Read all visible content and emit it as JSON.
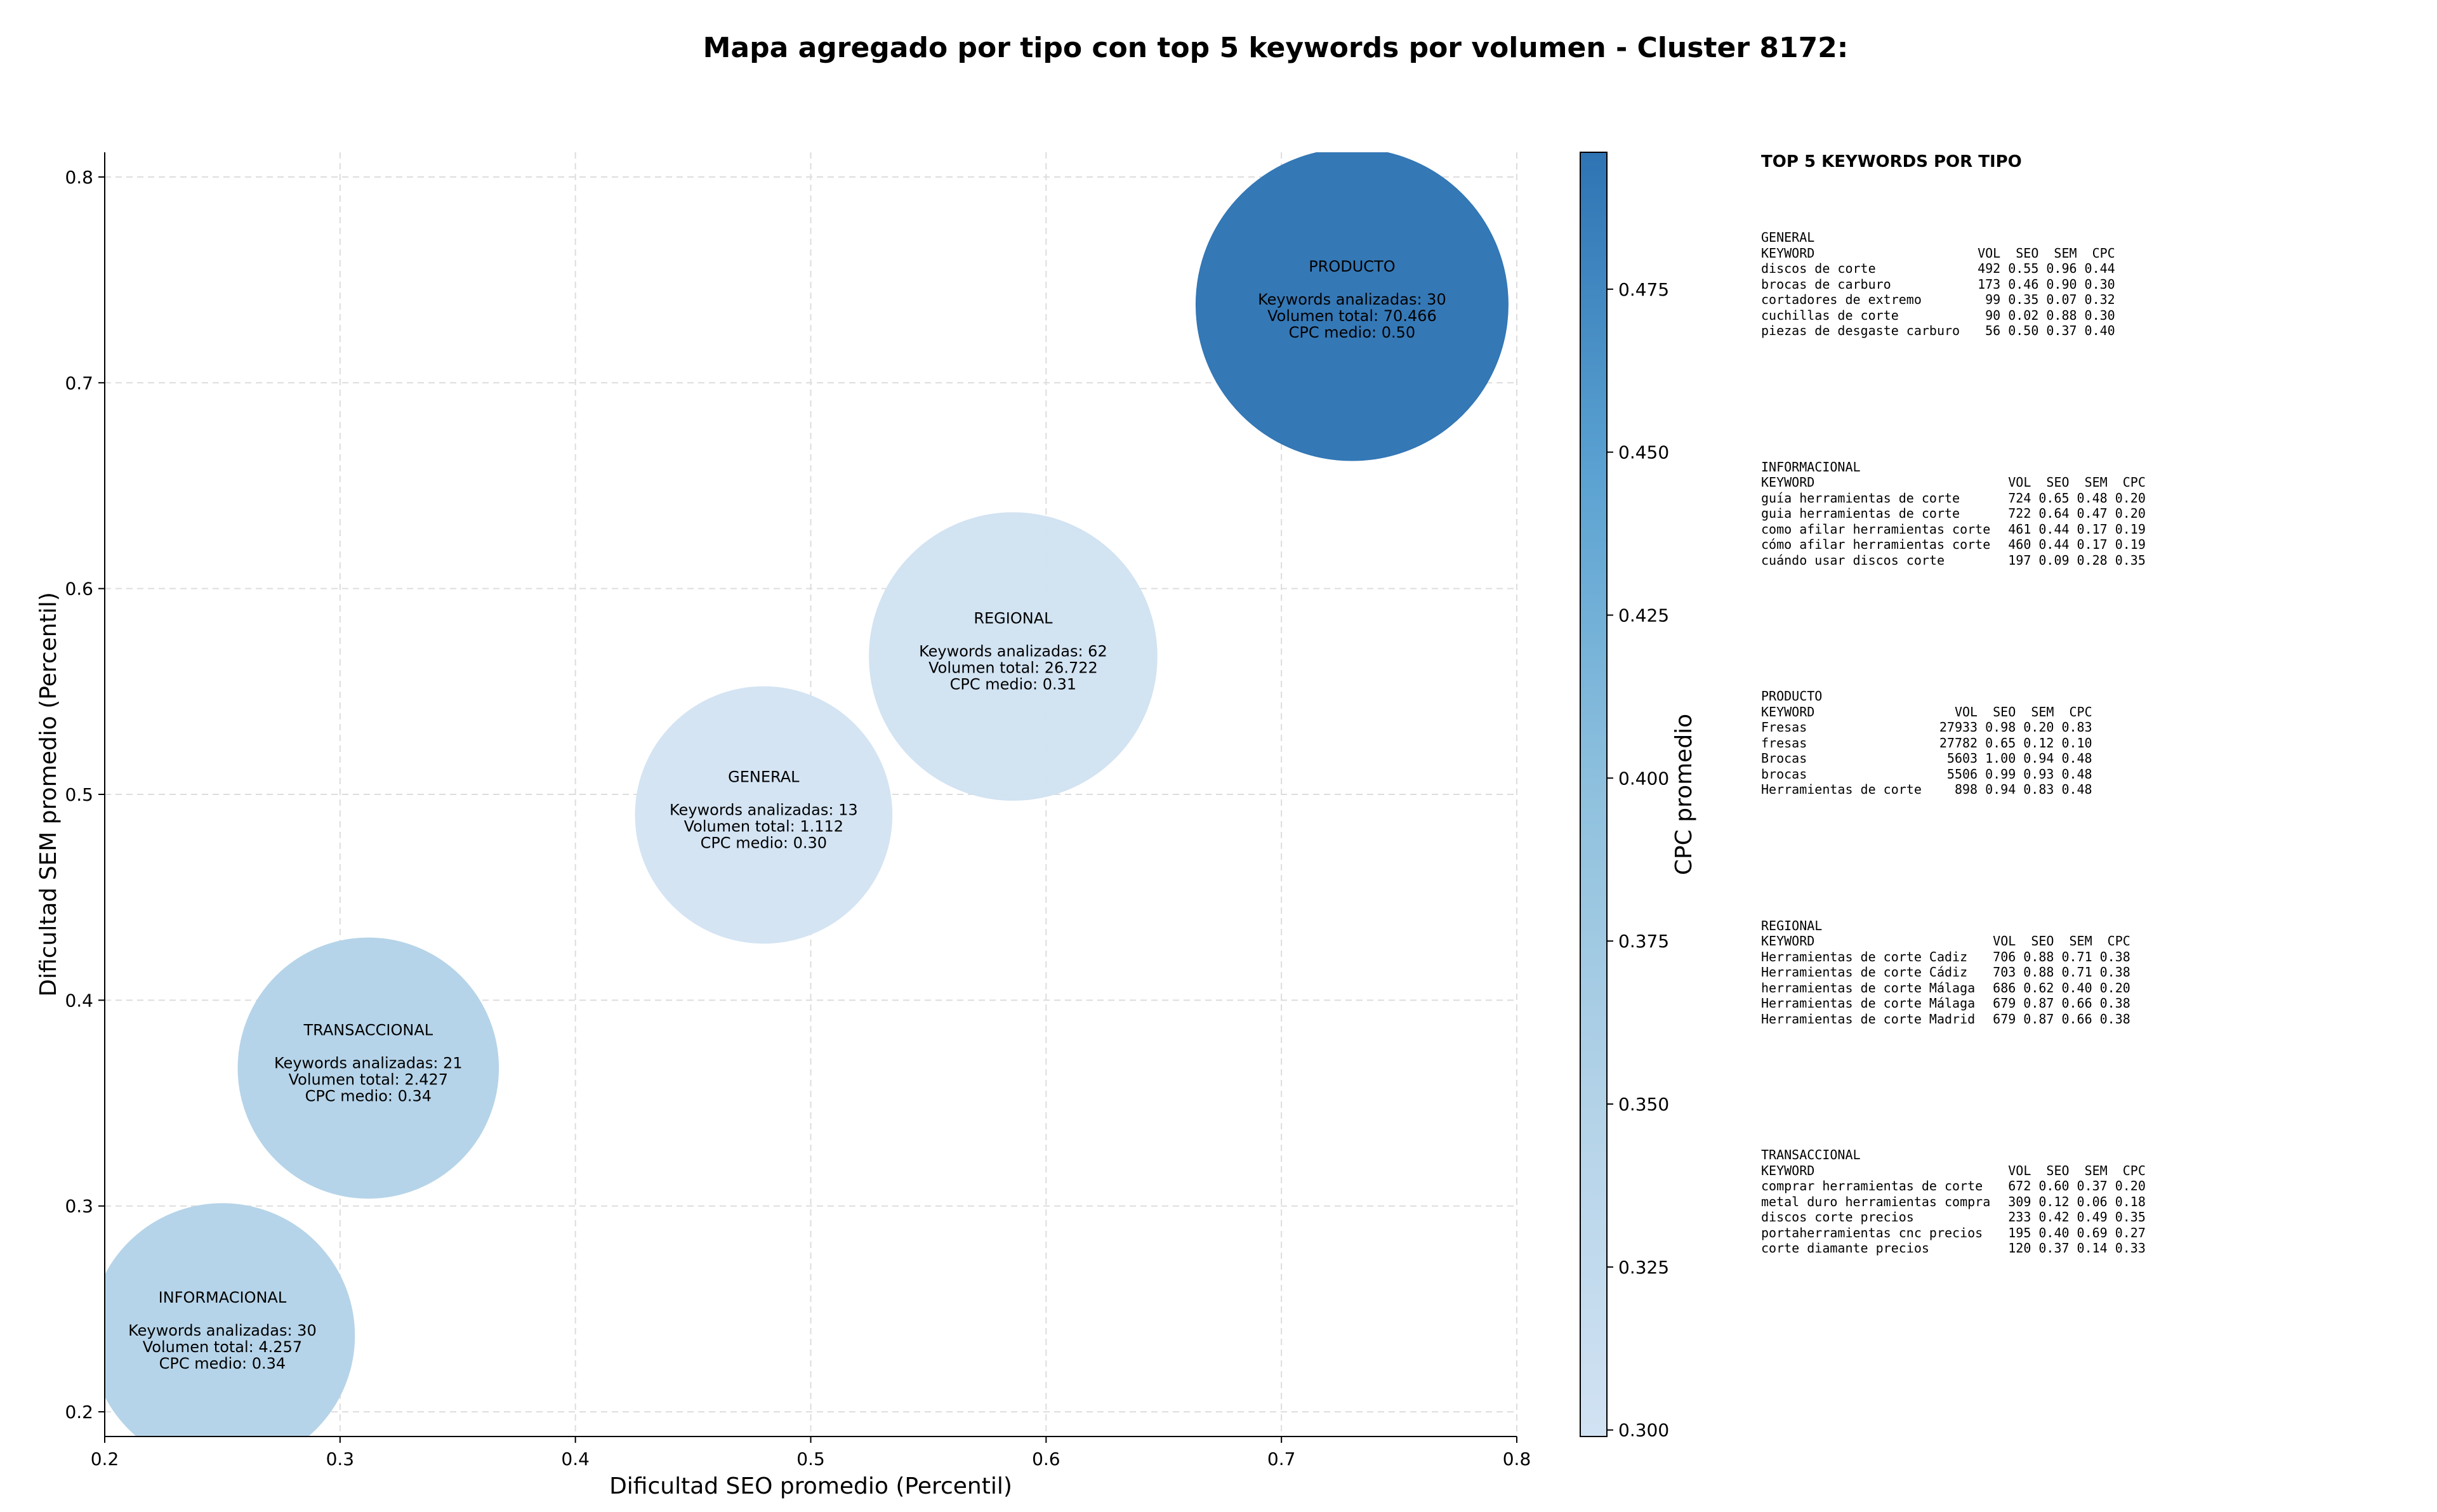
{
  "title": "Mapa agregado por tipo con top 5 keywords por volumen - Cluster 8172:",
  "chart_data": {
    "type": "scatter",
    "subtype": "bubble",
    "xlabel": "Dificultad SEO promedio (Percentil)",
    "ylabel": "Dificultad SEM promedio (Percentil)",
    "xlim": [
      0.2,
      0.8
    ],
    "ylim": [
      0.188,
      0.812
    ],
    "xticks": [
      "0.2",
      "0.3",
      "0.4",
      "0.5",
      "0.6",
      "0.7",
      "0.8"
    ],
    "yticks": [
      "0.2",
      "0.3",
      "0.4",
      "0.5",
      "0.6",
      "0.7",
      "0.8"
    ],
    "grid": true,
    "colorbar": {
      "label": "CPC promedio",
      "min": 0.299,
      "max": 0.496,
      "ticks": [
        "0.300",
        "0.325",
        "0.350",
        "0.375",
        "0.400",
        "0.425",
        "0.450",
        "0.475"
      ],
      "colormap": [
        "#c6dbef",
        "#9ecae1",
        "#6baed6",
        "#4292c6",
        "#2171b5"
      ]
    },
    "points": [
      {
        "name": "INFORMACIONAL",
        "x": 0.25,
        "y": 0.237,
        "keywords": "Keywords analizadas: 30",
        "volume": "Volumen total: 4.257",
        "cpc_label": "CPC medio: 0.34",
        "cpc": 0.34,
        "color": "#b4d3e8"
      },
      {
        "name": "TRANSACCIONAL",
        "x": 0.312,
        "y": 0.367,
        "keywords": "Keywords analizadas: 21",
        "volume": "Volumen total: 2.427",
        "cpc_label": "CPC medio: 0.34",
        "cpc": 0.34,
        "color": "#b4d3e8"
      },
      {
        "name": "GENERAL",
        "x": 0.48,
        "y": 0.49,
        "keywords": "Keywords analizadas: 13",
        "volume": "Volumen total: 1.112",
        "cpc_label": "CPC medio: 0.30",
        "cpc": 0.3,
        "color": "#d3e3f3"
      },
      {
        "name": "REGIONAL",
        "x": 0.586,
        "y": 0.567,
        "keywords": "Keywords analizadas: 62",
        "volume": "Volumen total: 26.722",
        "cpc_label": "CPC medio: 0.31",
        "cpc": 0.31,
        "color": "#d1e2f2"
      },
      {
        "name": "PRODUCTO",
        "x": 0.73,
        "y": 0.738,
        "keywords": "Keywords analizadas: 30",
        "volume": "Volumen total: 70.466",
        "cpc_label": "CPC medio: 0.50",
        "cpc": 0.5,
        "color": "#2e74b4"
      }
    ]
  },
  "panel": {
    "title": "TOP 5 KEYWORDS POR TIPO",
    "columns": [
      "KEYWORD",
      "VOL",
      "SEO",
      "SEM",
      "CPC"
    ],
    "blocks": [
      {
        "name": "GENERAL",
        "rows": [
          [
            "discos de corte",
            "492",
            "0.55",
            "0.96",
            "0.44"
          ],
          [
            "brocas de carburo",
            "173",
            "0.46",
            "0.90",
            "0.30"
          ],
          [
            "cortadores de extremo",
            "99",
            "0.35",
            "0.07",
            "0.32"
          ],
          [
            "cuchillas de corte",
            "90",
            "0.02",
            "0.88",
            "0.30"
          ],
          [
            "piezas de desgaste carburo",
            "56",
            "0.50",
            "0.37",
            "0.40"
          ]
        ]
      },
      {
        "name": "INFORMACIONAL",
        "rows": [
          [
            "guía herramientas de corte",
            "724",
            "0.65",
            "0.48",
            "0.20"
          ],
          [
            "guia herramientas de corte",
            "722",
            "0.64",
            "0.47",
            "0.20"
          ],
          [
            "como afilar herramientas corte",
            "461",
            "0.44",
            "0.17",
            "0.19"
          ],
          [
            "cómo afilar herramientas corte",
            "460",
            "0.44",
            "0.17",
            "0.19"
          ],
          [
            "cuándo usar discos corte",
            "197",
            "0.09",
            "0.28",
            "0.35"
          ]
        ]
      },
      {
        "name": "PRODUCTO",
        "rows": [
          [
            "Fresas",
            "27933",
            "0.98",
            "0.20",
            "0.83"
          ],
          [
            "fresas",
            "27782",
            "0.65",
            "0.12",
            "0.10"
          ],
          [
            "Brocas",
            "5603",
            "1.00",
            "0.94",
            "0.48"
          ],
          [
            "brocas",
            "5506",
            "0.99",
            "0.93",
            "0.48"
          ],
          [
            "Herramientas de corte",
            "898",
            "0.94",
            "0.83",
            "0.48"
          ]
        ]
      },
      {
        "name": "REGIONAL",
        "rows": [
          [
            "Herramientas de corte Cadiz",
            "706",
            "0.88",
            "0.71",
            "0.38"
          ],
          [
            "Herramientas de corte Cádiz",
            "703",
            "0.88",
            "0.71",
            "0.38"
          ],
          [
            "herramientas de corte Málaga",
            "686",
            "0.62",
            "0.40",
            "0.20"
          ],
          [
            "Herramientas de corte Málaga",
            "679",
            "0.87",
            "0.66",
            "0.38"
          ],
          [
            "Herramientas de corte Madrid",
            "679",
            "0.87",
            "0.66",
            "0.38"
          ]
        ]
      },
      {
        "name": "TRANSACCIONAL",
        "rows": [
          [
            "comprar herramientas de corte",
            "672",
            "0.60",
            "0.37",
            "0.20"
          ],
          [
            "metal duro herramientas compra",
            "309",
            "0.12",
            "0.06",
            "0.18"
          ],
          [
            "discos corte precios",
            "233",
            "0.42",
            "0.49",
            "0.35"
          ],
          [
            "portaherramientas cnc precios",
            "195",
            "0.40",
            "0.69",
            "0.27"
          ],
          [
            "corte diamante precios",
            "120",
            "0.37",
            "0.14",
            "0.33"
          ]
        ]
      }
    ]
  }
}
